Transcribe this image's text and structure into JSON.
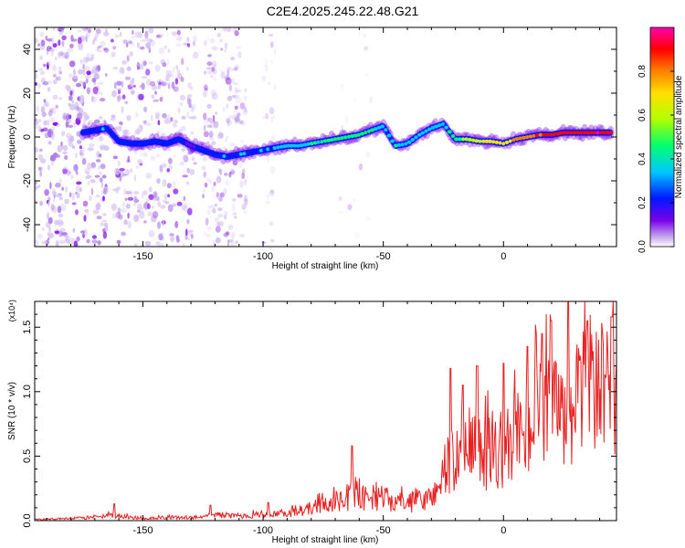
{
  "title": "C2E4.2025.245.22.48.G21",
  "chart_data": [
    {
      "type": "heatmap",
      "title": "C2E4.2025.245.22.48.G21",
      "xlabel": "Height of straight line (km)",
      "ylabel": "Frequency (Hz)",
      "xlim": [
        -195,
        47
      ],
      "ylim": [
        -50,
        50
      ],
      "x_ticks": [
        -150,
        -100,
        -50,
        0
      ],
      "y_ticks": [
        -40,
        -20,
        0,
        20,
        40
      ],
      "colorbar": {
        "label": "Normalized spectral amplitude",
        "range": [
          0,
          1
        ],
        "ticks": [
          0.0,
          0.2,
          0.4,
          0.6,
          0.8
        ],
        "tick_labels": [
          "0.0",
          "0.2",
          "0.4",
          "0.6",
          "0.8"
        ],
        "colors": [
          "#ffffff",
          "#c9b0ee",
          "#7a00e8",
          "#0018ff",
          "#00c8ff",
          "#00ff70",
          "#b0ff00",
          "#ffe000",
          "#ff8000",
          "#ff0000",
          "#ff00b0"
        ]
      },
      "ridge": {
        "x": [
          -175,
          -170,
          -165,
          -160,
          -155,
          -150,
          -145,
          -140,
          -135,
          -130,
          -125,
          -120,
          -115,
          -110,
          -105,
          -100,
          -95,
          -90,
          -85,
          -80,
          -75,
          -70,
          -65,
          -60,
          -55,
          -50,
          -45,
          -40,
          -35,
          -30,
          -25,
          -20,
          -15,
          -10,
          -5,
          0,
          5,
          10,
          15,
          20,
          25,
          30,
          35,
          40,
          45
        ],
        "y": [
          2,
          3,
          4,
          -2,
          -3,
          -3,
          -2,
          -3,
          -1,
          -4,
          -6,
          -8,
          -9,
          -8,
          -7,
          -6,
          -5,
          -4,
          -4,
          -3,
          -2,
          -1,
          0,
          1,
          3,
          5,
          -4,
          -3,
          1,
          4,
          6,
          -1,
          -1,
          -2,
          -2,
          -3,
          -1,
          0,
          1,
          1,
          2,
          2,
          2,
          2,
          2
        ],
        "amplitude": [
          0.3,
          0.32,
          0.33,
          0.28,
          0.3,
          0.3,
          0.31,
          0.29,
          0.3,
          0.25,
          0.28,
          0.3,
          0.32,
          0.33,
          0.35,
          0.35,
          0.38,
          0.4,
          0.42,
          0.45,
          0.47,
          0.48,
          0.5,
          0.5,
          0.45,
          0.4,
          0.42,
          0.43,
          0.42,
          0.4,
          0.38,
          0.55,
          0.62,
          0.65,
          0.72,
          0.7,
          0.75,
          0.82,
          0.86,
          0.88,
          0.9,
          0.92,
          0.93,
          0.95,
          0.95
        ]
      }
    },
    {
      "type": "line",
      "xlabel": "Height of straight line (km)",
      "ylabel": "SNR (10 * v/v)",
      "y_multiplier": "(x10⁴)",
      "xlim": [
        -195,
        47
      ],
      "ylim": [
        0,
        1.7
      ],
      "x_ticks": [
        -150,
        -100,
        -50,
        0
      ],
      "y_ticks": [
        0.0,
        0.5,
        1.0,
        1.5
      ],
      "y_tick_labels": [
        "0.0",
        "0.5",
        "1.0",
        "1.5"
      ],
      "color": "#e82020",
      "envelope": {
        "x": [
          -195,
          -180,
          -170,
          -162,
          -150,
          -140,
          -130,
          -125,
          -120,
          -115,
          -110,
          -105,
          -100,
          -95,
          -90,
          -85,
          -80,
          -75,
          -70,
          -65,
          -62,
          -60,
          -55,
          -50,
          -45,
          -40,
          -35,
          -30,
          -25,
          -22,
          -20,
          -17,
          -15,
          -12,
          -10,
          -8,
          -5,
          0,
          5,
          10,
          15,
          20,
          25,
          30,
          35,
          40,
          45,
          47
        ],
        "y": [
          0.01,
          0.02,
          0.03,
          0.05,
          0.02,
          0.03,
          0.03,
          0.04,
          0.06,
          0.05,
          0.04,
          0.05,
          0.07,
          0.06,
          0.07,
          0.09,
          0.12,
          0.15,
          0.17,
          0.2,
          0.3,
          0.22,
          0.2,
          0.22,
          0.18,
          0.17,
          0.19,
          0.22,
          0.45,
          0.6,
          0.5,
          0.55,
          0.55,
          0.7,
          0.65,
          0.68,
          0.62,
          0.7,
          0.8,
          0.9,
          0.98,
          1.02,
          1.05,
          1.1,
          1.18,
          1.22,
          1.27,
          1.27
        ],
        "spikes": [
          {
            "x": -162,
            "y": 0.13
          },
          {
            "x": -122,
            "y": 0.12
          },
          {
            "x": -98,
            "y": 0.14
          },
          {
            "x": -63,
            "y": 0.58
          },
          {
            "x": -22,
            "y": 1.18
          },
          {
            "x": -17,
            "y": 1.05
          },
          {
            "x": -11,
            "y": 1.2
          },
          {
            "x": 0,
            "y": 1.22
          },
          {
            "x": 10,
            "y": 1.35
          },
          {
            "x": 16,
            "y": 1.45
          },
          {
            "x": 20,
            "y": 1.55
          },
          {
            "x": 27,
            "y": 1.7
          },
          {
            "x": 35,
            "y": 1.55
          },
          {
            "x": 45,
            "y": 1.58
          }
        ]
      }
    }
  ]
}
